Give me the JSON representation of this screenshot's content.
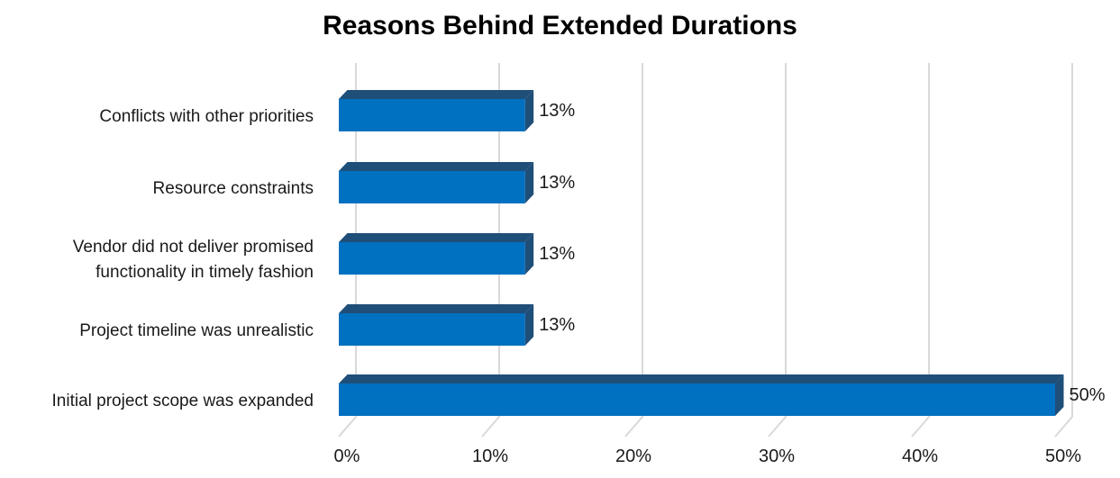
{
  "chart_data": {
    "type": "bar",
    "orientation": "horizontal",
    "style": "3d",
    "title": "Reasons Behind Extended Durations",
    "xlabel": "",
    "ylabel": "",
    "categories": [
      [
        "Conflicts with other priorities"
      ],
      [
        "Resource constraints"
      ],
      [
        "Vendor did not deliver promised",
        "functionality in timely fashion"
      ],
      [
        "Project timeline was unrealistic"
      ],
      [
        "Initial project scope was expanded"
      ]
    ],
    "values": [
      13,
      13,
      13,
      13,
      50
    ],
    "value_labels": [
      "13%",
      "13%",
      "13%",
      "13%",
      "50%"
    ],
    "xlim": [
      0,
      50
    ],
    "ticks": [
      0,
      10,
      20,
      30,
      40,
      50
    ],
    "tick_labels": [
      "0%",
      "10%",
      "20%",
      "30%",
      "40%",
      "50%"
    ],
    "grid": true,
    "legend": "none",
    "colors": {
      "bar_front": "#0070c0",
      "bar_top": "#1f4e79",
      "bar_side": "#1f4e79",
      "grid": "#d9d9d9"
    }
  }
}
